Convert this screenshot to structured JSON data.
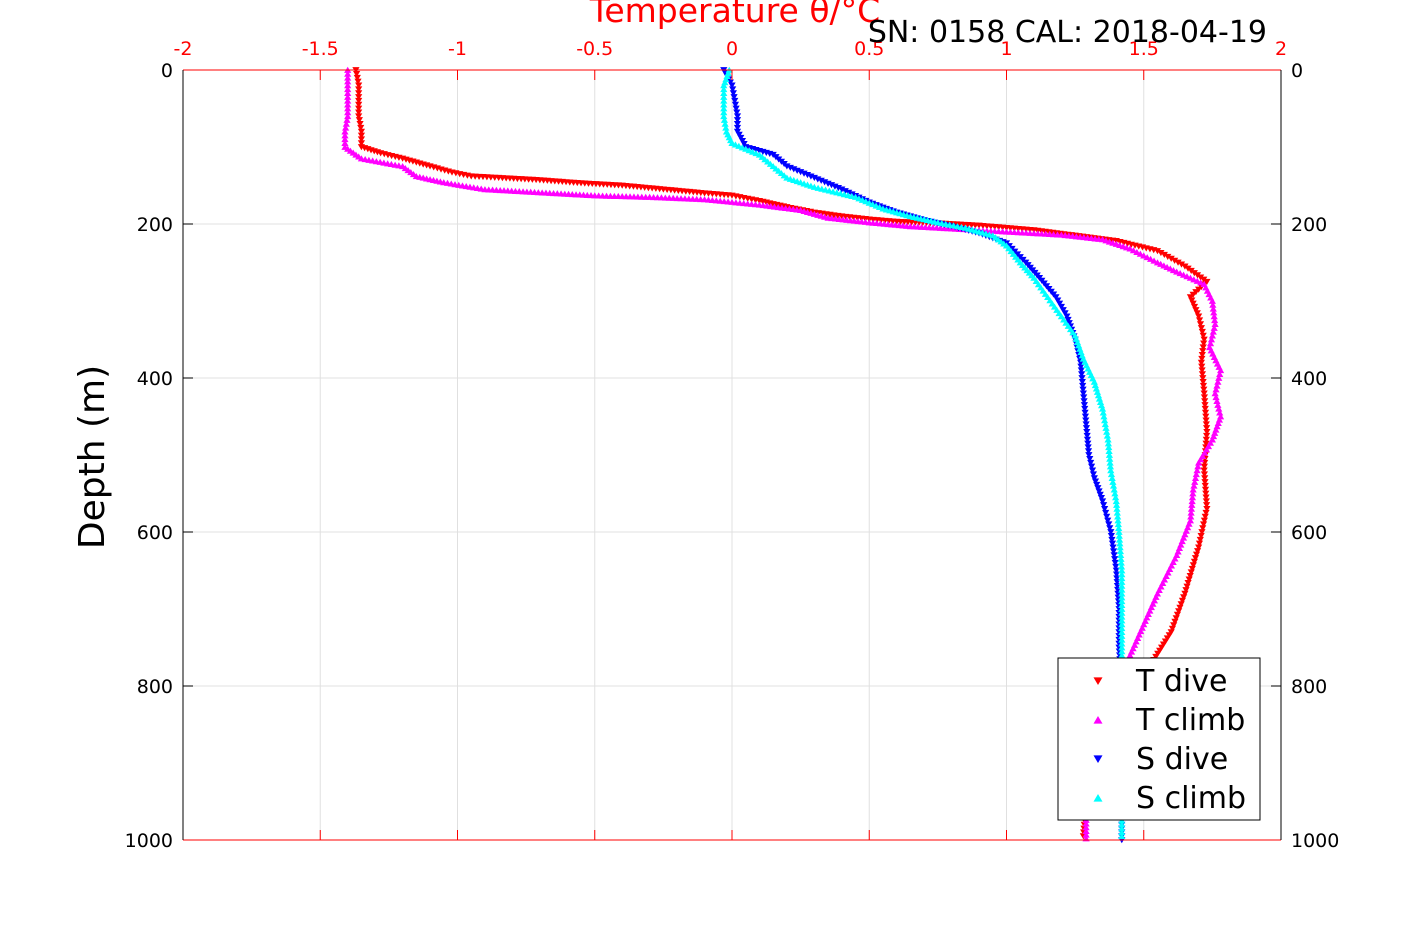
{
  "chart_data": {
    "type": "scatter",
    "title": "Temperature θ/°C",
    "annotation": "SN: 0158  CAL: 2018-04-19",
    "xlabel": "Temperature θ/°C",
    "ylabel": "Depth (m)",
    "xlim": [
      -2,
      2
    ],
    "ylim": [
      0,
      1000
    ],
    "y_reversed": true,
    "x_axis_position": "top",
    "grid": true,
    "legend_position": "bottom-right",
    "x_ticks": [
      "-2",
      "-1.5",
      "-1",
      "-0.5",
      "0",
      "0.5",
      "1",
      "1.5",
      "2"
    ],
    "y_ticks": [
      "0",
      "200",
      "400",
      "600",
      "800",
      "1000"
    ],
    "colors": {
      "axis_x": "#ff0000",
      "grid": "#e0e0e0"
    },
    "series": [
      {
        "name": "T dive",
        "marker": "triangle-down",
        "color": "#ff0000",
        "points": [
          [
            -1.37,
            0
          ],
          [
            -1.36,
            20
          ],
          [
            -1.36,
            40
          ],
          [
            -1.36,
            60
          ],
          [
            -1.35,
            80
          ],
          [
            -1.35,
            100
          ],
          [
            -1.28,
            108
          ],
          [
            -1.2,
            115
          ],
          [
            -1.1,
            125
          ],
          [
            -1.02,
            133
          ],
          [
            -0.95,
            138
          ],
          [
            -0.85,
            140
          ],
          [
            -0.7,
            143
          ],
          [
            -0.55,
            147
          ],
          [
            -0.4,
            150
          ],
          [
            -0.25,
            155
          ],
          [
            -0.1,
            160
          ],
          [
            0.0,
            163
          ],
          [
            0.1,
            170
          ],
          [
            0.2,
            178
          ],
          [
            0.3,
            185
          ],
          [
            0.4,
            190
          ],
          [
            0.5,
            194
          ],
          [
            0.6,
            197
          ],
          [
            0.75,
            199
          ],
          [
            0.9,
            202
          ],
          [
            1.0,
            205
          ],
          [
            1.1,
            208
          ],
          [
            1.25,
            215
          ],
          [
            1.4,
            222
          ],
          [
            1.55,
            235
          ],
          [
            1.65,
            255
          ],
          [
            1.73,
            275
          ],
          [
            1.67,
            295
          ],
          [
            1.7,
            320
          ],
          [
            1.72,
            350
          ],
          [
            1.71,
            380
          ],
          [
            1.72,
            420
          ],
          [
            1.73,
            470
          ],
          [
            1.72,
            520
          ],
          [
            1.73,
            570
          ],
          [
            1.7,
            620
          ],
          [
            1.65,
            680
          ],
          [
            1.6,
            730
          ],
          [
            1.53,
            770
          ],
          [
            1.45,
            810
          ],
          [
            1.37,
            850
          ],
          [
            1.3,
            900
          ],
          [
            1.29,
            950
          ],
          [
            1.28,
            995
          ]
        ]
      },
      {
        "name": "T climb",
        "marker": "triangle-up",
        "color": "#ff00ff",
        "points": [
          [
            -1.4,
            0
          ],
          [
            -1.4,
            20
          ],
          [
            -1.4,
            40
          ],
          [
            -1.4,
            60
          ],
          [
            -1.41,
            80
          ],
          [
            -1.41,
            100
          ],
          [
            -1.35,
            115
          ],
          [
            -1.2,
            125
          ],
          [
            -1.15,
            138
          ],
          [
            -1.05,
            146
          ],
          [
            -0.9,
            155
          ],
          [
            -0.65,
            160
          ],
          [
            -0.5,
            163
          ],
          [
            -0.3,
            165
          ],
          [
            -0.1,
            168
          ],
          [
            0.1,
            175
          ],
          [
            0.25,
            182
          ],
          [
            0.35,
            192
          ],
          [
            0.5,
            198
          ],
          [
            0.65,
            203
          ],
          [
            0.8,
            206
          ],
          [
            1.0,
            210
          ],
          [
            1.2,
            214
          ],
          [
            1.35,
            220
          ],
          [
            1.45,
            232
          ],
          [
            1.55,
            250
          ],
          [
            1.62,
            262
          ],
          [
            1.72,
            278
          ],
          [
            1.75,
            300
          ],
          [
            1.76,
            330
          ],
          [
            1.74,
            360
          ],
          [
            1.78,
            390
          ],
          [
            1.76,
            420
          ],
          [
            1.78,
            450
          ],
          [
            1.75,
            480
          ],
          [
            1.7,
            510
          ],
          [
            1.68,
            545
          ],
          [
            1.67,
            585
          ],
          [
            1.62,
            630
          ],
          [
            1.55,
            680
          ],
          [
            1.5,
            720
          ],
          [
            1.45,
            760
          ],
          [
            1.39,
            800
          ],
          [
            1.34,
            850
          ],
          [
            1.3,
            900
          ],
          [
            1.29,
            950
          ],
          [
            1.29,
            998
          ]
        ]
      },
      {
        "name": "S dive",
        "marker": "triangle-down",
        "color": "#0000ff",
        "points": [
          [
            -0.03,
            0
          ],
          [
            0.0,
            20
          ],
          [
            0.01,
            40
          ],
          [
            0.02,
            60
          ],
          [
            0.02,
            80
          ],
          [
            0.05,
            100
          ],
          [
            0.15,
            110
          ],
          [
            0.2,
            125
          ],
          [
            0.3,
            140
          ],
          [
            0.4,
            155
          ],
          [
            0.5,
            172
          ],
          [
            0.6,
            185
          ],
          [
            0.7,
            195
          ],
          [
            0.8,
            203
          ],
          [
            0.9,
            212
          ],
          [
            1.0,
            225
          ],
          [
            1.07,
            250
          ],
          [
            1.12,
            270
          ],
          [
            1.18,
            295
          ],
          [
            1.22,
            320
          ],
          [
            1.25,
            350
          ],
          [
            1.27,
            380
          ],
          [
            1.28,
            420
          ],
          [
            1.29,
            460
          ],
          [
            1.3,
            500
          ],
          [
            1.32,
            530
          ],
          [
            1.35,
            560
          ],
          [
            1.38,
            600
          ],
          [
            1.4,
            650
          ],
          [
            1.41,
            700
          ],
          [
            1.41,
            750
          ],
          [
            1.42,
            800
          ],
          [
            1.42,
            850
          ],
          [
            1.42,
            900
          ],
          [
            1.42,
            950
          ],
          [
            1.42,
            1000
          ]
        ]
      },
      {
        "name": "S climb",
        "marker": "triangle-up",
        "color": "#00ffff",
        "points": [
          [
            -0.01,
            0
          ],
          [
            -0.03,
            20
          ],
          [
            -0.03,
            40
          ],
          [
            -0.03,
            60
          ],
          [
            -0.02,
            80
          ],
          [
            0.0,
            95
          ],
          [
            0.1,
            110
          ],
          [
            0.15,
            125
          ],
          [
            0.2,
            140
          ],
          [
            0.3,
            152
          ],
          [
            0.45,
            165
          ],
          [
            0.55,
            180
          ],
          [
            0.65,
            190
          ],
          [
            0.75,
            198
          ],
          [
            0.85,
            205
          ],
          [
            0.95,
            215
          ],
          [
            1.0,
            228
          ],
          [
            1.05,
            250
          ],
          [
            1.1,
            270
          ],
          [
            1.15,
            295
          ],
          [
            1.2,
            320
          ],
          [
            1.25,
            345
          ],
          [
            1.28,
            375
          ],
          [
            1.32,
            405
          ],
          [
            1.35,
            440
          ],
          [
            1.37,
            480
          ],
          [
            1.38,
            520
          ],
          [
            1.4,
            560
          ],
          [
            1.41,
            600
          ],
          [
            1.42,
            650
          ],
          [
            1.42,
            700
          ],
          [
            1.42,
            750
          ],
          [
            1.42,
            800
          ],
          [
            1.42,
            850
          ],
          [
            1.42,
            900
          ],
          [
            1.42,
            950
          ],
          [
            1.42,
            995
          ]
        ]
      }
    ]
  }
}
